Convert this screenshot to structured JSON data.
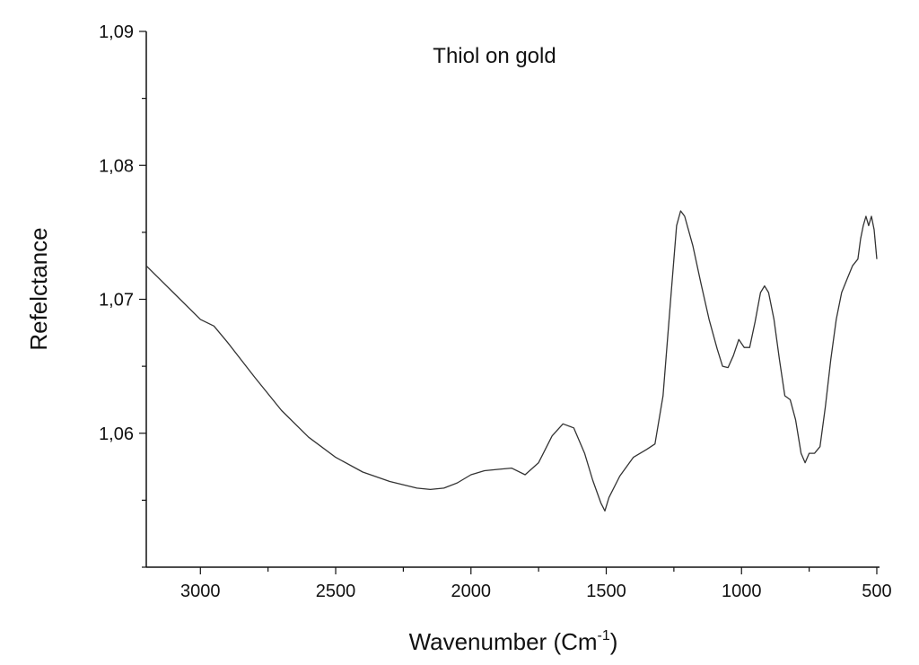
{
  "chart_data": {
    "type": "line",
    "title": "Thiol on gold",
    "xlabel": "Wavenumber (Cm",
    "xlabel_superscript": "-1",
    "xlabel_suffix": ")",
    "ylabel": "Refelctance",
    "xlim": [
      3200,
      490
    ],
    "ylim": [
      1.05,
      1.09
    ],
    "x_reversed": true,
    "grid": false,
    "legend": "none",
    "x_ticks": [
      3000,
      2500,
      2000,
      1500,
      1000,
      500
    ],
    "x_tick_labels": [
      "3000",
      "2500",
      "2000",
      "1500",
      "1000",
      "500"
    ],
    "y_ticks": [
      1.06,
      1.07,
      1.08,
      1.09
    ],
    "y_tick_labels": [
      "1,06",
      "1,07",
      "1,08",
      "1,09"
    ],
    "line_color": "#333333",
    "series": [
      {
        "x": [
          3200,
          3100,
          3000,
          2950,
          2900,
          2800,
          2700,
          2600,
          2500,
          2400,
          2300,
          2200,
          2150,
          2100,
          2050,
          2000,
          1950,
          1900,
          1850,
          1800,
          1750,
          1700,
          1660,
          1620,
          1580,
          1550,
          1520,
          1505,
          1490,
          1450,
          1400,
          1350,
          1320,
          1290,
          1260,
          1240,
          1225,
          1210,
          1180,
          1150,
          1120,
          1090,
          1070,
          1050,
          1030,
          1010,
          990,
          970,
          950,
          930,
          915,
          900,
          880,
          860,
          840,
          820,
          800,
          780,
          765,
          750,
          730,
          710,
          690,
          670,
          650,
          630,
          610,
          590,
          570,
          560,
          550,
          540,
          530,
          520,
          510,
          500
        ],
        "y": [
          1.0725,
          1.0705,
          1.0685,
          1.068,
          1.0668,
          1.0642,
          1.0617,
          1.0597,
          1.0582,
          1.0571,
          1.0564,
          1.0559,
          1.0558,
          1.0559,
          1.0563,
          1.0569,
          1.0572,
          1.0573,
          1.0574,
          1.0569,
          1.0578,
          1.0598,
          1.0607,
          1.0604,
          1.0585,
          1.0565,
          1.0548,
          1.0542,
          1.0552,
          1.0568,
          1.0582,
          1.0588,
          1.0592,
          1.0628,
          1.0705,
          1.0755,
          1.0766,
          1.0762,
          1.074,
          1.0712,
          1.0685,
          1.0663,
          1.065,
          1.0649,
          1.0658,
          1.067,
          1.0664,
          1.0664,
          1.0683,
          1.0705,
          1.071,
          1.0705,
          1.0685,
          1.0655,
          1.0628,
          1.0625,
          1.061,
          1.0585,
          1.0578,
          1.0585,
          1.0585,
          1.059,
          1.062,
          1.0655,
          1.0685,
          1.0705,
          1.0715,
          1.0725,
          1.073,
          1.0745,
          1.0755,
          1.0762,
          1.0755,
          1.0762,
          1.0752,
          1.073
        ]
      }
    ]
  }
}
